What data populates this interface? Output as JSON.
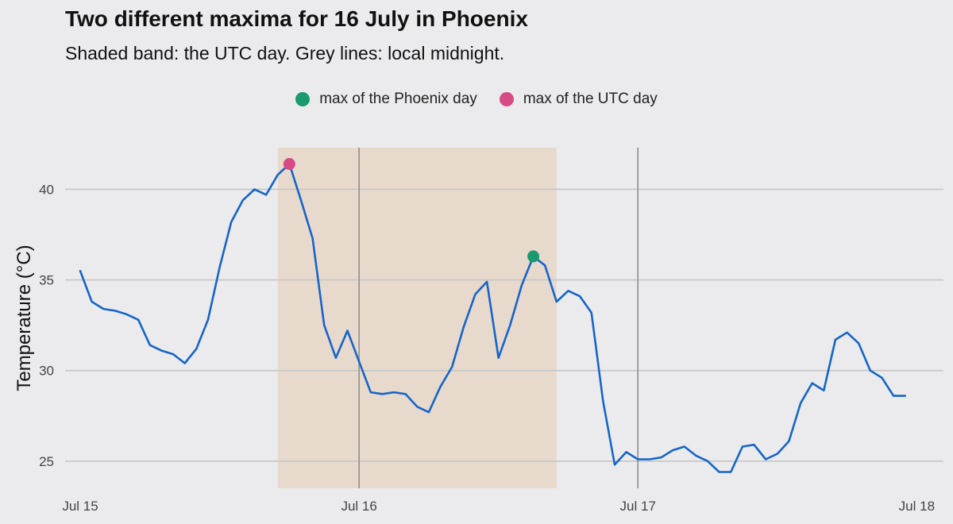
{
  "title": "Two different maxima for 16 July in Phoenix",
  "subtitle": "Shaded band: the UTC day. Grey lines: local midnight.",
  "colors": {
    "line": "#1565c8",
    "phoenix_max": "#1a9a6e",
    "utc_max": "#d64a86",
    "band": "#e8d9cd",
    "midnight": "#8f8f8f",
    "grid": "#c6c6c6"
  },
  "legend": {
    "phoenix": "max of the Phoenix day",
    "utc": "max of the UTC day"
  },
  "chart_data": {
    "type": "line",
    "title": "Two different maxima for 16 July in Phoenix",
    "subtitle": "Shaded band: the UTC day. Grey lines: local midnight.",
    "xlabel": "",
    "ylabel": "Temperature (°C)",
    "x_unit": "hours since Jul 15 00:00",
    "xlim": [
      -1.3,
      74.3
    ],
    "ylim": [
      23.5,
      42.3
    ],
    "x_ticks": [
      {
        "x": 0,
        "label": "Jul 15"
      },
      {
        "x": 24,
        "label": "Jul 16"
      },
      {
        "x": 48,
        "label": "Jul 17"
      },
      {
        "x": 72,
        "label": "Jul 18"
      }
    ],
    "y_ticks": [
      25,
      30,
      35,
      40
    ],
    "grid": true,
    "legend_position": "top",
    "shaded_band": {
      "start": 17,
      "end": 41,
      "label": "UTC day"
    },
    "midnight_lines": [
      24,
      48
    ],
    "series": [
      {
        "name": "Temperature",
        "values": [
          35.5,
          33.8,
          33.4,
          33.3,
          33.1,
          32.8,
          31.4,
          31.1,
          30.9,
          30.4,
          31.2,
          32.8,
          35.7,
          38.2,
          39.4,
          40.0,
          39.7,
          40.8,
          41.4,
          39.4,
          37.3,
          32.5,
          30.7,
          32.2,
          30.5,
          28.8,
          28.7,
          28.8,
          28.7,
          28.0,
          27.7,
          29.1,
          30.2,
          32.4,
          34.2,
          34.9,
          30.7,
          32.5,
          34.7,
          36.3,
          35.8,
          33.8,
          34.4,
          34.1,
          33.2,
          28.3,
          24.8,
          25.5,
          25.1,
          25.1,
          25.2,
          25.6,
          25.8,
          25.3,
          25.0,
          24.4,
          24.4,
          25.8,
          25.9,
          25.1,
          25.4,
          26.1,
          28.2,
          29.3,
          28.9,
          31.7,
          32.1,
          31.5,
          30.0,
          29.6,
          28.6,
          28.6
        ]
      }
    ],
    "markers": [
      {
        "name": "max of the Phoenix day",
        "x": 39,
        "y": 36.3
      },
      {
        "name": "max of the UTC day",
        "x": 18,
        "y": 41.4
      }
    ]
  }
}
